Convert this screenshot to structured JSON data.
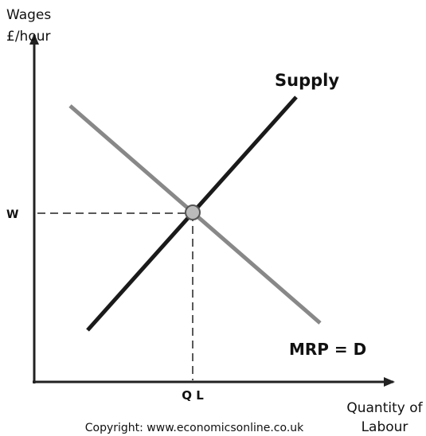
{
  "axes": {
    "y_label": [
      "Wages",
      "£/hour"
    ],
    "x_label": [
      "Quantity of",
      "Labour"
    ]
  },
  "curves": {
    "supply": "Supply",
    "demand": "MRP = D"
  },
  "equilibrium": {
    "wage": "W",
    "quantity": "Q L"
  },
  "footer": "Copyright: www.economicsonline.co.uk"
}
